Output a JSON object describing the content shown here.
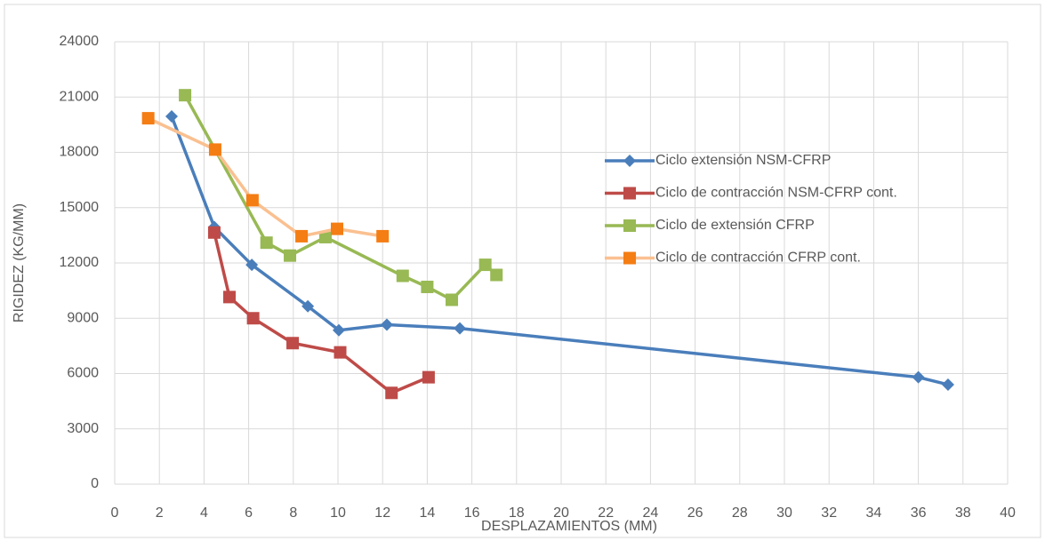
{
  "chart_data": {
    "type": "line",
    "xlabel": "DESPLAZAMIENTOS (MM)",
    "ylabel": "RIGIDEZ (KG/MM)",
    "xlim": [
      0,
      40
    ],
    "xticks": [
      0,
      2,
      4,
      6,
      8,
      10,
      12,
      14,
      16,
      18,
      20,
      22,
      24,
      26,
      28,
      30,
      32,
      34,
      36,
      38,
      40
    ],
    "ylim": [
      0,
      24000
    ],
    "yticks": [
      0,
      3000,
      6000,
      9000,
      12000,
      15000,
      18000,
      21000,
      24000
    ],
    "grid": true,
    "legend": "right",
    "series": [
      {
        "name": "Ciclo extensión NSM-CFRP",
        "color": "#4a7ebb",
        "marker_color": "#4a7ebb",
        "marker": "diamond",
        "x": [
          2.55,
          4.46,
          6.14,
          8.65,
          10.04,
          12.19,
          15.46,
          36.0,
          37.33
        ],
        "values": [
          19950,
          13950,
          11900,
          9650,
          8350,
          8650,
          8450,
          5800,
          5400
        ]
      },
      {
        "name": "Ciclo de contracción NSM-CFRP cont.",
        "color": "#be4b48",
        "marker_color": "#be4b48",
        "marker": "square",
        "x": [
          4.46,
          5.14,
          6.2,
          7.97,
          10.1,
          12.4,
          14.06
        ],
        "values": [
          13650,
          10150,
          9000,
          7650,
          7150,
          4950,
          5800
        ]
      },
      {
        "name": "Ciclo de extensión CFRP",
        "color": "#98b954",
        "marker_color": "#98b954",
        "marker": "square",
        "x": [
          3.15,
          6.8,
          7.85,
          9.44,
          12.9,
          14.0,
          15.1,
          16.6,
          17.1
        ],
        "values": [
          21100,
          13100,
          12400,
          13400,
          11300,
          10700,
          10000,
          11900,
          11350
        ]
      },
      {
        "name": "Ciclo de contracción CFRP cont.",
        "color": "#fac090",
        "marker_color": "#f47d14",
        "marker": "square",
        "x": [
          1.5,
          4.5,
          6.17,
          8.37,
          9.96,
          12.0
        ],
        "values": [
          19850,
          18150,
          15400,
          13450,
          13850,
          13450
        ]
      }
    ]
  }
}
